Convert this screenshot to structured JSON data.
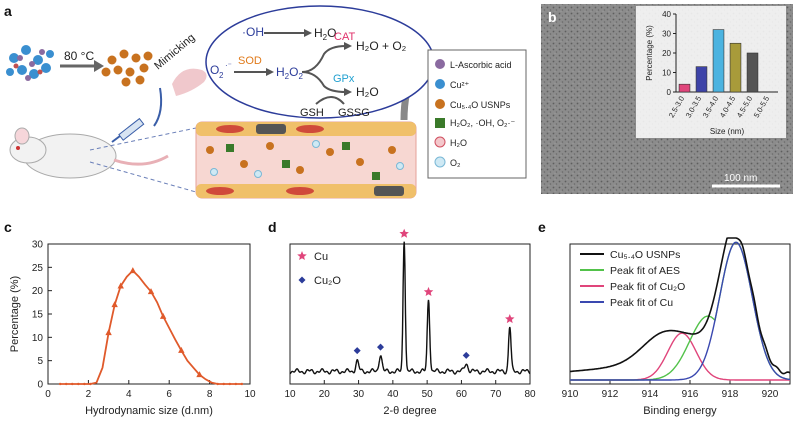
{
  "panels": {
    "a": {
      "label": "a",
      "temperature": "80 °C",
      "mimicking": "Mimicking",
      "reactions": {
        "oh": "·OH",
        "h2o_1": "H",
        "h2o_sub": "2",
        "h2o_o": "O",
        "superoxide": "O",
        "sod": "SOD",
        "h2o2": "H",
        "cat": "CAT",
        "gpx": "GPx",
        "cat_product": "H₂O + O₂",
        "gpx_product": "H₂O",
        "gsh": "GSH",
        "gssg": "GSSG"
      },
      "legend": [
        {
          "key": "ascorbic",
          "text": "L-Ascorbic acid"
        },
        {
          "key": "cu",
          "text": "Cu²⁺"
        },
        {
          "key": "usnps",
          "text": "Cu₅.₄O USNPs"
        },
        {
          "key": "ros",
          "text": "H₂O₂, ·OH, O₂·⁻"
        },
        {
          "key": "h2o",
          "text": "H₂O"
        },
        {
          "key": "o2",
          "text": "O₂"
        }
      ]
    },
    "b": {
      "label": "b",
      "scale_bar": "100 nm",
      "inset": {
        "ylabel": "Percentage (%)",
        "xlabel": "Size (nm)",
        "ticks_y": [
          "0",
          "10",
          "20",
          "30",
          "40"
        ]
      }
    },
    "c": {
      "label": "c"
    },
    "d": {
      "label": "d"
    },
    "e": {
      "label": "e"
    }
  },
  "chart_data": [
    {
      "id": "b-inset",
      "type": "bar",
      "categories": [
        "2.5-3.0",
        "3.0-3.5",
        "3.5-4.0",
        "4.0-4.5",
        "4.5-5.0",
        "5.0-5.5"
      ],
      "values": [
        4,
        13,
        32,
        25,
        20,
        0
      ],
      "colors": [
        "#e0457b",
        "#3d43a8",
        "#4bb3e0",
        "#a89b3a",
        "#555555",
        "#ffffff"
      ],
      "ylabel": "Percentage (%)",
      "xlabel": "Size (nm)",
      "ylim": [
        0,
        40
      ]
    },
    {
      "id": "c",
      "type": "line",
      "xlabel": "Hydrodynamic size (d.nm)",
      "ylabel": "Percentage (%)",
      "xlim": [
        0,
        10
      ],
      "ylim": [
        0,
        30
      ],
      "xticks": [
        0,
        2,
        4,
        6,
        8,
        10
      ],
      "yticks": [
        0,
        5,
        10,
        15,
        20,
        25,
        30
      ],
      "color": "#e05a2b",
      "x": [
        0.6,
        0.9,
        1.2,
        1.5,
        1.8,
        2.1,
        2.4,
        2.7,
        3.0,
        3.3,
        3.6,
        3.9,
        4.2,
        4.5,
        4.8,
        5.1,
        5.4,
        5.7,
        6.0,
        6.3,
        6.6,
        6.9,
        7.2,
        7.5,
        7.8,
        8.1,
        8.4,
        8.7,
        9.0,
        9.3,
        9.6
      ],
      "y": [
        0,
        0,
        0,
        0,
        0,
        0,
        0.3,
        3.5,
        11,
        17,
        21,
        23,
        24.3,
        23,
        21.3,
        19.8,
        17.5,
        14.5,
        12,
        9.5,
        7.2,
        5,
        3.5,
        2,
        1,
        0.3,
        0,
        0,
        0,
        0,
        0
      ],
      "markers_x": [
        3.0,
        3.3,
        3.6,
        4.2,
        5.1,
        5.7,
        6.6,
        7.5
      ],
      "markers_y": [
        11,
        17,
        21,
        24.3,
        19.8,
        14.5,
        7.2,
        2
      ]
    },
    {
      "id": "d",
      "type": "line",
      "xlabel": "2-θ degree",
      "xlim": [
        10,
        80
      ],
      "xticks": [
        10,
        20,
        30,
        40,
        50,
        60,
        70,
        80
      ],
      "legend": [
        {
          "name": "Cu",
          "marker": "star",
          "color": "#e0457b"
        },
        {
          "name": "Cu₂O",
          "marker": "diamond",
          "color": "#2c3c9a"
        }
      ],
      "peaks": [
        {
          "x": 29.6,
          "h": 0.08,
          "w": 0.6
        },
        {
          "x": 36.4,
          "h": 0.13,
          "w": 0.6
        },
        {
          "x": 43.3,
          "h": 1.0,
          "w": 0.45
        },
        {
          "x": 50.4,
          "h": 0.55,
          "w": 0.5
        },
        {
          "x": 61.4,
          "h": 0.06,
          "w": 0.7
        },
        {
          "x": 74.1,
          "h": 0.34,
          "w": 0.5
        }
      ],
      "cu_markers": [
        43.3,
        50.4,
        74.1
      ],
      "cu2o_markers": [
        29.6,
        36.4,
        61.4
      ]
    },
    {
      "id": "e",
      "type": "line",
      "xlabel": "Binding energy",
      "xlim": [
        910,
        921
      ],
      "xticks": [
        910,
        912,
        914,
        916,
        918,
        920
      ],
      "series": [
        {
          "name": "Cu₅.₄O USNPs",
          "color": "#111111"
        },
        {
          "name": "Peak fit of AES",
          "color": "#52c24a"
        },
        {
          "name": "Peak fit of Cu₂O",
          "color": "#e0457b"
        },
        {
          "name": "Peak fit of Cu",
          "color": "#3a48b0"
        }
      ]
    }
  ]
}
